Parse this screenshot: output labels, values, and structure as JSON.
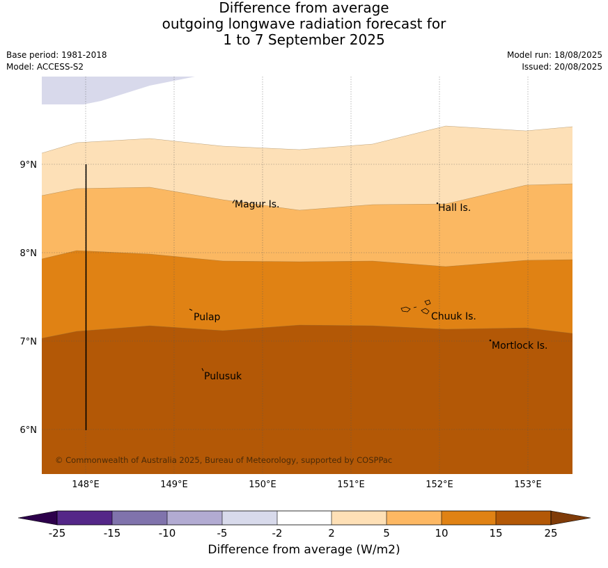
{
  "title": {
    "line1": "Difference from average",
    "line2": "outgoing longwave radiation forecast for",
    "line3": "1 to 7 September 2025"
  },
  "meta_left": {
    "base_period": "Base period: 1981-2018",
    "model": "Model: ACCESS-S2"
  },
  "meta_right": {
    "model_run": "Model run: 18/08/2025",
    "issued": "Issued: 20/08/2025"
  },
  "map": {
    "lon_ticks": [
      "148°E",
      "149°E",
      "150°E",
      "151°E",
      "152°E",
      "153°E"
    ],
    "lat_ticks": [
      "9°N",
      "8°N",
      "7°N",
      "6°N"
    ],
    "places": [
      {
        "name": "Magur Is."
      },
      {
        "name": "Hall Is."
      },
      {
        "name": "Pulap"
      },
      {
        "name": "Chuuk Is."
      },
      {
        "name": "Mortlock Is."
      },
      {
        "name": "Pulusuk"
      }
    ],
    "copyright": "© Commonwealth of Australia 2025, Bureau of Meteorology, supported by COSPPac",
    "colors": {
      "class_neg5_neg2": "#d8d9eb",
      "class_2_5": "#fde0b7",
      "class_5_10": "#fbb862",
      "class_10_15": "#e08214",
      "class_15_25": "#b35806"
    }
  },
  "colorbar": {
    "label": "Difference from average (W/m2)",
    "ticks": [
      "-25",
      "-15",
      "-10",
      "-5",
      "-2",
      "2",
      "5",
      "10",
      "15",
      "25"
    ],
    "colors": [
      "#2d004b",
      "#542788",
      "#8073ac",
      "#b2abd2",
      "#d8daeb",
      "#ffffff",
      "#fee0b6",
      "#fdb863",
      "#e08214",
      "#b35806",
      "#7f3b08"
    ]
  }
}
